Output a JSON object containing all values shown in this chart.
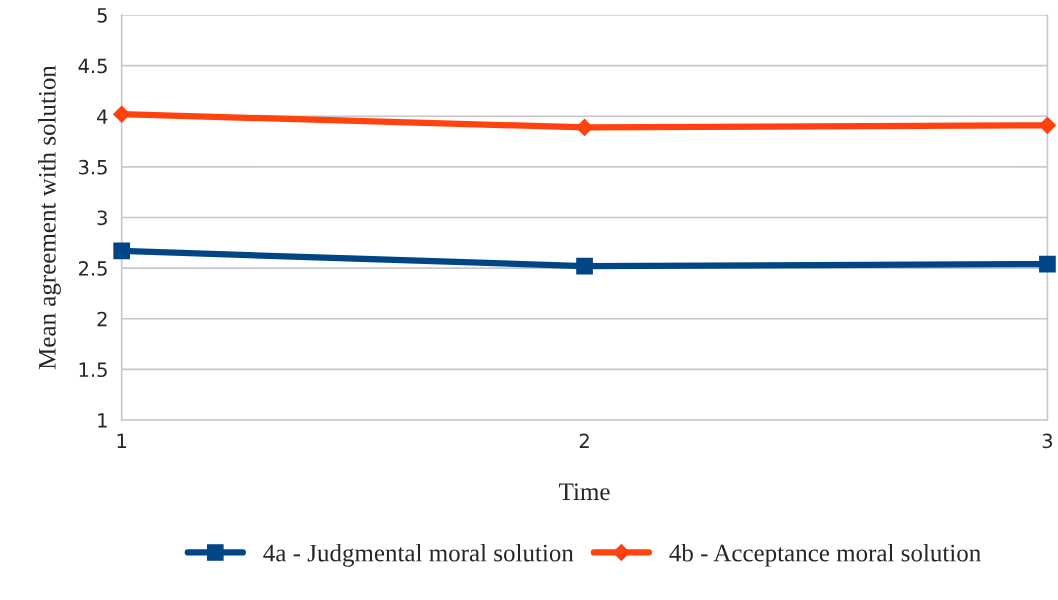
{
  "chart_data": {
    "type": "line",
    "xlabel": "Time",
    "ylabel": "Mean agreement with solution",
    "x": [
      1,
      2,
      3
    ],
    "series": [
      {
        "name": "4a - Judgmental moral solution",
        "color": "#004586",
        "marker": "square",
        "values": [
          2.67,
          2.52,
          2.54
        ]
      },
      {
        "name": "4b - Acceptance moral solution",
        "color": "#ff420e",
        "marker": "diamond",
        "values": [
          4.02,
          3.89,
          3.91
        ]
      }
    ],
    "xlim": [
      1,
      3
    ],
    "xticks": [
      1,
      2,
      3
    ],
    "ylim": [
      1,
      5
    ],
    "yticks": [
      1,
      1.5,
      2,
      2.5,
      3,
      3.5,
      4,
      4.5,
      5
    ],
    "grid": "y",
    "legend": "bottom"
  }
}
